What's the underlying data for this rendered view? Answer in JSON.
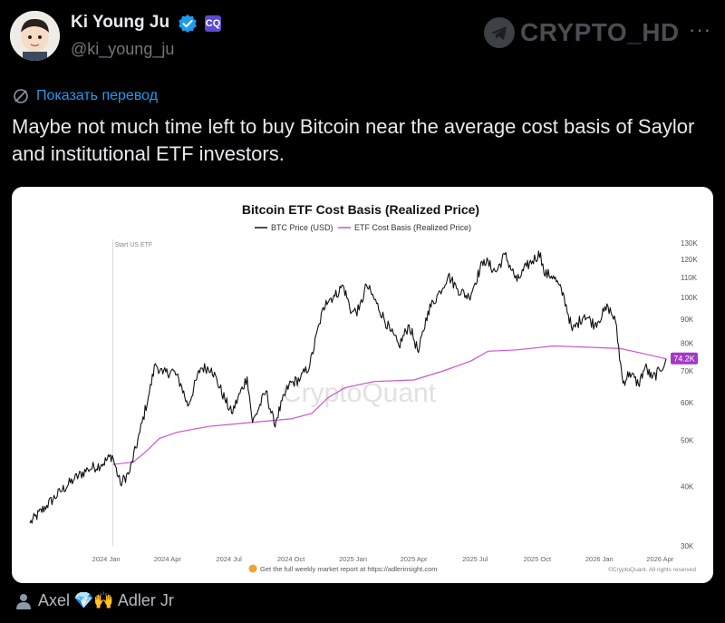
{
  "author": {
    "name": "Ki Young Ju",
    "handle": "@ki_young_ju",
    "org_badge": "CQ"
  },
  "watermark": "CRYPTO_HD",
  "more_label": "···",
  "translate_label": "Показать перевод",
  "tweet_text": "Maybe not much time left to buy Bitcoin near the average cost basis of Saylor and institutional ETF investors.",
  "colors": {
    "btc_line": "#111111",
    "etf_line": "#cc55cc",
    "accent": "#1d9bf0",
    "current_badge": "#a238c6"
  },
  "chart_data": {
    "type": "line",
    "title": "Bitcoin ETF Cost Basis (Realized Price)",
    "legend": [
      "BTC Price (USD)",
      "ETF Cost Basis (Realized Price)"
    ],
    "legend_placement": "top-center",
    "annotation": "Start US ETF",
    "current_value_label": "74.2K",
    "y_scale": "log",
    "ylim": [
      30000,
      130000
    ],
    "y_ticks": [
      {
        "label": "130K",
        "value": 130000
      },
      {
        "label": "120K",
        "value": 120000
      },
      {
        "label": "110K",
        "value": 110000
      },
      {
        "label": "100K",
        "value": 100000
      },
      {
        "label": "90K",
        "value": 90000
      },
      {
        "label": "80K",
        "value": 80000
      },
      {
        "label": "70K",
        "value": 70000
      },
      {
        "label": "60K",
        "value": 60000
      },
      {
        "label": "50K",
        "value": 50000
      },
      {
        "label": "40K",
        "value": 40000
      },
      {
        "label": "30K",
        "value": 30000
      }
    ],
    "x_ticks": [
      {
        "label": "2024 Jan",
        "date": "2024-01-01"
      },
      {
        "label": "2024 Apr",
        "date": "2024-04-01"
      },
      {
        "label": "2024 Jul",
        "date": "2024-07-01"
      },
      {
        "label": "2024 Oct",
        "date": "2024-10-01"
      },
      {
        "label": "2025 Jan",
        "date": "2025-01-01"
      },
      {
        "label": "2025 Apr",
        "date": "2025-04-01"
      },
      {
        "label": "2025 Jul",
        "date": "2025-07-01"
      },
      {
        "label": "2025 Oct",
        "date": "2025-10-01"
      },
      {
        "label": "2026 Jan",
        "date": "2026-01-01"
      },
      {
        "label": "2026 Apr",
        "date": "2026-04-01"
      }
    ],
    "xlim": [
      "2023-09-10",
      "2026-04-10"
    ],
    "etf_start_date": "2024-01-11",
    "series": [
      {
        "name": "BTC Price (USD)",
        "points": [
          [
            "2023-09-10",
            33500
          ],
          [
            "2023-10-05",
            36500
          ],
          [
            "2023-10-25",
            39000
          ],
          [
            "2023-11-15",
            41500
          ],
          [
            "2023-12-05",
            43500
          ],
          [
            "2023-12-25",
            44500
          ],
          [
            "2024-01-10",
            46500
          ],
          [
            "2024-01-22",
            40500
          ],
          [
            "2024-02-05",
            43000
          ],
          [
            "2024-02-20",
            52000
          ],
          [
            "2024-03-05",
            63000
          ],
          [
            "2024-03-14",
            72500
          ],
          [
            "2024-03-25",
            69000
          ],
          [
            "2024-04-10",
            70000
          ],
          [
            "2024-04-22",
            65000
          ],
          [
            "2024-05-01",
            59000
          ],
          [
            "2024-05-20",
            71000
          ],
          [
            "2024-06-05",
            71000
          ],
          [
            "2024-06-25",
            61000
          ],
          [
            "2024-07-05",
            57000
          ],
          [
            "2024-07-28",
            68000
          ],
          [
            "2024-08-05",
            54500
          ],
          [
            "2024-08-25",
            63500
          ],
          [
            "2024-09-06",
            54000
          ],
          [
            "2024-09-28",
            65500
          ],
          [
            "2024-10-15",
            67500
          ],
          [
            "2024-10-29",
            72000
          ],
          [
            "2024-11-12",
            88000
          ],
          [
            "2024-11-22",
            98500
          ],
          [
            "2024-12-05",
            100500
          ],
          [
            "2024-12-17",
            106000
          ],
          [
            "2024-12-30",
            93000
          ],
          [
            "2025-01-10",
            94000
          ],
          [
            "2025-01-21",
            106000
          ],
          [
            "2025-02-05",
            97000
          ],
          [
            "2025-02-25",
            85000
          ],
          [
            "2025-03-10",
            79000
          ],
          [
            "2025-03-25",
            87500
          ],
          [
            "2025-04-08",
            76500
          ],
          [
            "2025-04-22",
            93500
          ],
          [
            "2025-05-10",
            103000
          ],
          [
            "2025-05-22",
            111000
          ],
          [
            "2025-06-05",
            104000
          ],
          [
            "2025-06-22",
            100000
          ],
          [
            "2025-07-14",
            120000
          ],
          [
            "2025-08-01",
            113000
          ],
          [
            "2025-08-14",
            123000
          ],
          [
            "2025-09-01",
            108000
          ],
          [
            "2025-09-15",
            116000
          ],
          [
            "2025-10-06",
            124000
          ],
          [
            "2025-10-11",
            112000
          ],
          [
            "2025-10-25",
            111000
          ],
          [
            "2025-11-10",
            100000
          ],
          [
            "2025-11-22",
            85000
          ],
          [
            "2025-12-10",
            92000
          ],
          [
            "2025-12-25",
            87500
          ],
          [
            "2026-01-14",
            95500
          ],
          [
            "2026-01-25",
            89000
          ],
          [
            "2026-02-05",
            66000
          ],
          [
            "2026-02-15",
            69500
          ],
          [
            "2026-02-28",
            65500
          ],
          [
            "2026-03-10",
            71500
          ],
          [
            "2026-03-20",
            67500
          ],
          [
            "2026-04-01",
            70000
          ],
          [
            "2026-04-10",
            74200
          ]
        ]
      },
      {
        "name": "ETF Cost Basis (Realized Price)",
        "points": [
          [
            "2024-01-11",
            44500
          ],
          [
            "2024-02-10",
            45000
          ],
          [
            "2024-03-01",
            47500
          ],
          [
            "2024-03-20",
            50500
          ],
          [
            "2024-04-15",
            52000
          ],
          [
            "2024-06-01",
            53500
          ],
          [
            "2024-08-01",
            54500
          ],
          [
            "2024-10-01",
            55500
          ],
          [
            "2024-11-01",
            57000
          ],
          [
            "2024-11-25",
            61500
          ],
          [
            "2024-12-20",
            64500
          ],
          [
            "2025-02-01",
            66500
          ],
          [
            "2025-04-01",
            67000
          ],
          [
            "2025-05-15",
            70000
          ],
          [
            "2025-06-25",
            73500
          ],
          [
            "2025-07-20",
            77000
          ],
          [
            "2025-09-01",
            77500
          ],
          [
            "2025-10-25",
            79000
          ],
          [
            "2025-12-15",
            78500
          ],
          [
            "2026-02-01",
            78000
          ],
          [
            "2026-03-01",
            76500
          ],
          [
            "2026-04-10",
            74200
          ]
        ]
      }
    ],
    "watermark": "CryptoQuant",
    "footer_text": "Get the full weekly market report at https://adlerinsight.com",
    "copyright": "©CryptoQuant. All rights reserved"
  },
  "likes": {
    "users": [
      "Axel",
      "Adler Jr"
    ],
    "emoji": "💎🙌"
  }
}
